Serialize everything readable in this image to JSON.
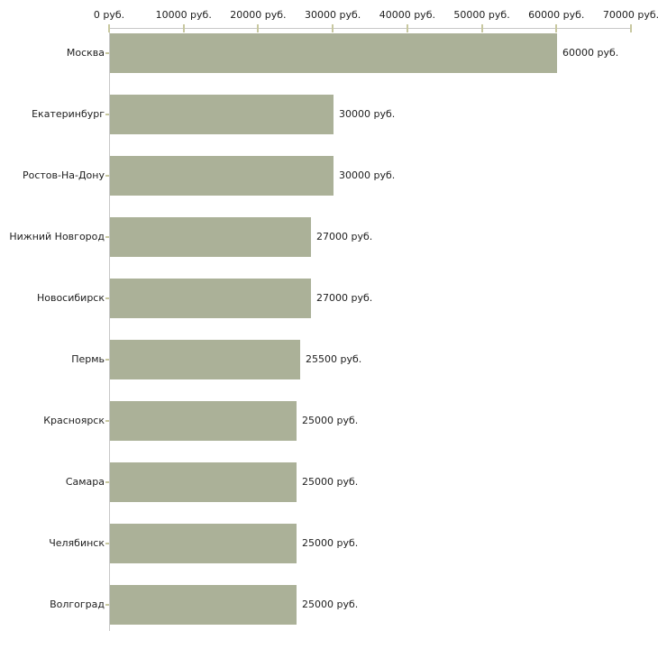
{
  "chart_data": {
    "type": "bar",
    "orientation": "horizontal",
    "title": "",
    "xlabel": "",
    "ylabel": "",
    "categories": [
      "Москва",
      "Екатеринбург",
      "Ростов-На-Дону",
      "Нижний Новгород",
      "Новосибирск",
      "Пермь",
      "Красноярск",
      "Самара",
      "Челябинск",
      "Волгоград"
    ],
    "values": [
      60000,
      30000,
      30000,
      27000,
      27000,
      25500,
      25000,
      25000,
      25000,
      25000
    ],
    "value_labels": [
      "60000 руб.",
      "30000 руб.",
      "30000 руб.",
      "27000 руб.",
      "27000 руб.",
      "25500 руб.",
      "25000 руб.",
      "25000 руб.",
      "25000 руб.",
      "25000 руб."
    ],
    "x_tick_values": [
      0,
      10000,
      20000,
      30000,
      40000,
      50000,
      60000,
      70000
    ],
    "x_tick_labels": [
      "0 руб.",
      "10000 руб.",
      "20000 руб.",
      "30000 руб.",
      "40000 руб.",
      "50000 руб.",
      "60000 руб.",
      "70000 руб."
    ],
    "xlim": [
      0,
      70000
    ],
    "grid": false,
    "legend": null,
    "colors": {
      "bar": "#abb198",
      "axis_line": "#c8c8c8",
      "tick_mark": "#c8c8a0",
      "text": "#202020",
      "background": "#ffffff"
    }
  }
}
